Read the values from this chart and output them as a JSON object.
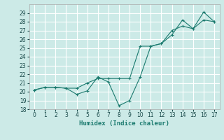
{
  "title": "",
  "xlabel": "Humidex (Indice chaleur)",
  "xlim": [
    -0.5,
    17.5
  ],
  "ylim": [
    18,
    30
  ],
  "yticks": [
    18,
    19,
    20,
    21,
    22,
    23,
    24,
    25,
    26,
    27,
    28,
    29
  ],
  "xticks": [
    0,
    1,
    2,
    3,
    4,
    5,
    6,
    7,
    8,
    9,
    10,
    11,
    12,
    13,
    14,
    15,
    16,
    17
  ],
  "background_color": "#cceae7",
  "grid_color": "#ffffff",
  "line_color": "#1a7a6e",
  "line1_x": [
    0,
    1,
    2,
    3,
    4,
    5,
    6,
    7,
    8,
    9,
    10,
    11,
    12,
    13,
    14,
    15,
    16,
    17
  ],
  "line1_y": [
    20.2,
    20.5,
    20.5,
    20.4,
    19.7,
    20.1,
    21.7,
    21.1,
    18.4,
    19.0,
    21.7,
    25.2,
    25.5,
    27.0,
    27.5,
    27.2,
    29.1,
    28.0
  ],
  "line2_x": [
    0,
    1,
    2,
    3,
    4,
    5,
    6,
    7,
    8,
    9,
    10,
    11,
    12,
    13,
    14,
    15,
    16,
    17
  ],
  "line2_y": [
    20.2,
    20.5,
    20.5,
    20.4,
    20.4,
    21.0,
    21.5,
    21.5,
    21.5,
    21.5,
    25.2,
    25.2,
    25.5,
    26.5,
    28.2,
    27.2,
    28.2,
    28.0
  ]
}
